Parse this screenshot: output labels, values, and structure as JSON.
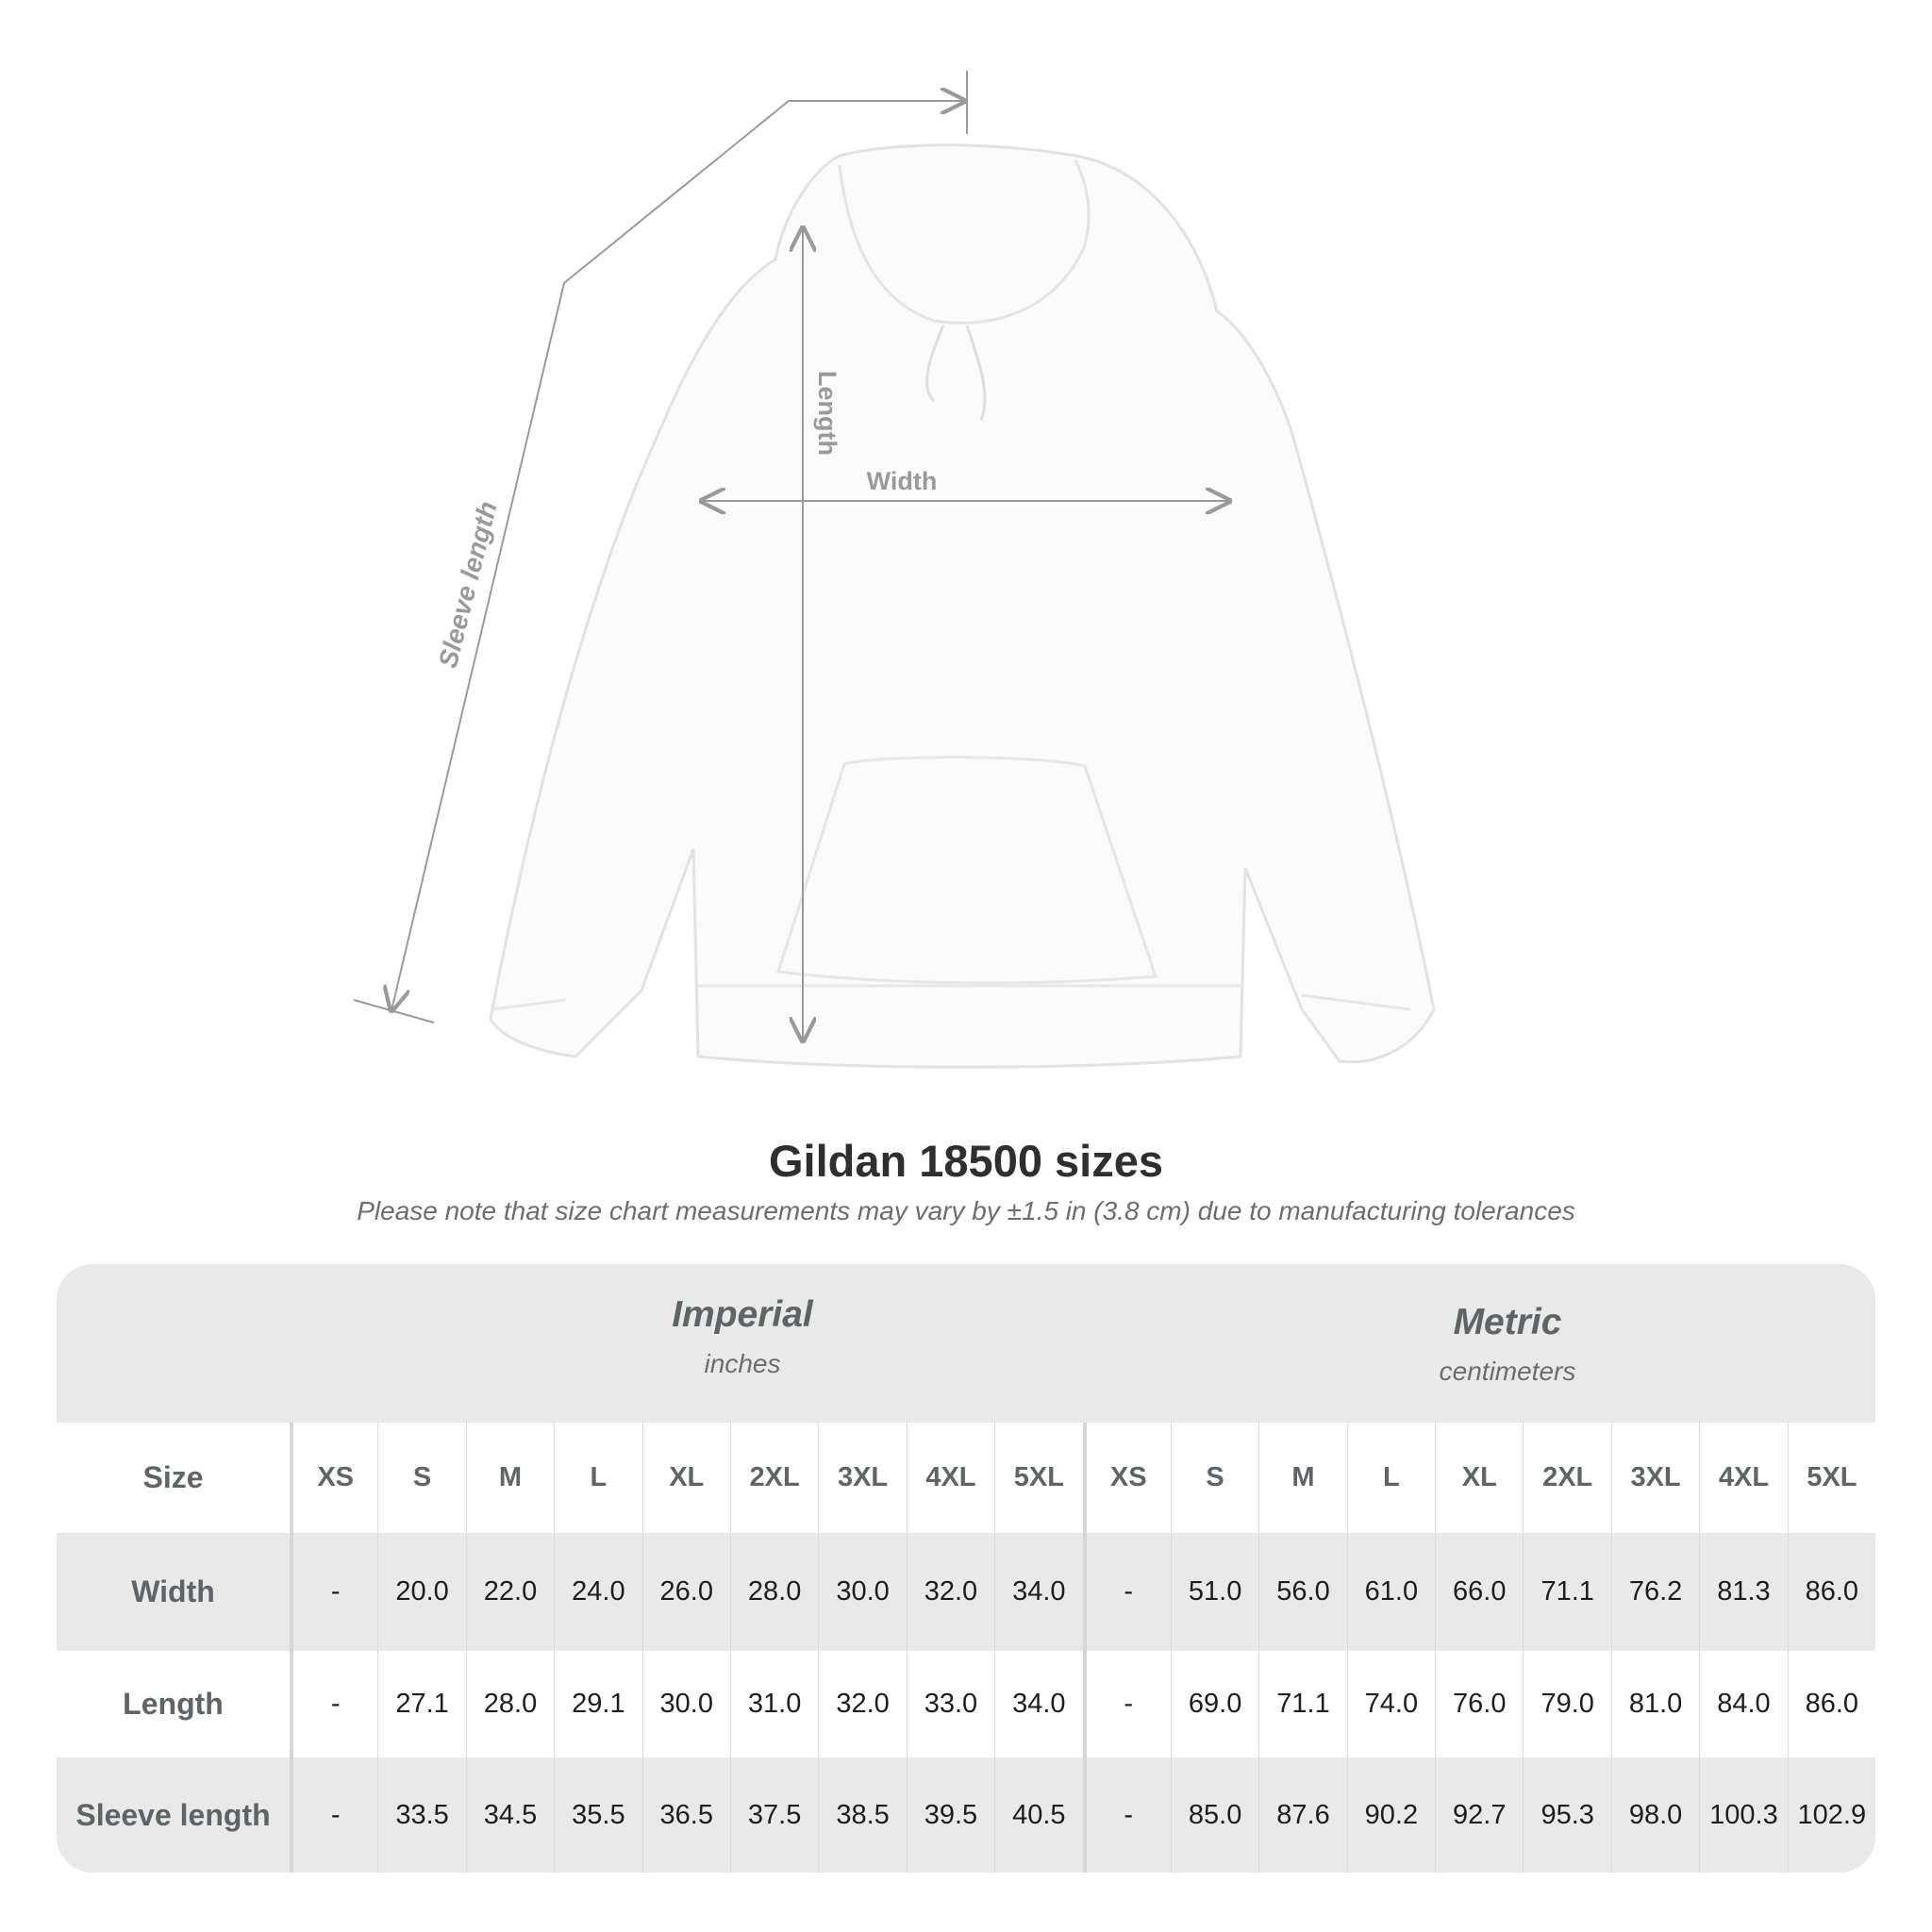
{
  "diagram": {
    "labels": {
      "sleeve": "Sleeve length",
      "length": "Length",
      "width": "Width"
    }
  },
  "title": "Gildan 18500 sizes",
  "subtitle": "Please note that size chart measurements may vary by ±1.5 in (3.8 cm) due to manufacturing tolerances",
  "table": {
    "imperial": {
      "name": "Imperial",
      "unit": "inches"
    },
    "metric": {
      "name": "Metric",
      "unit": "centimeters"
    },
    "size_label": "Size",
    "sizes": [
      "XS",
      "S",
      "M",
      "L",
      "XL",
      "2XL",
      "3XL",
      "4XL",
      "5XL"
    ],
    "rows": [
      {
        "label": "Width",
        "imperial": [
          "-",
          "20.0",
          "22.0",
          "24.0",
          "26.0",
          "28.0",
          "30.0",
          "32.0",
          "34.0"
        ],
        "metric": [
          "-",
          "51.0",
          "56.0",
          "61.0",
          "66.0",
          "71.1",
          "76.2",
          "81.3",
          "86.0"
        ]
      },
      {
        "label": "Length",
        "imperial": [
          "-",
          "27.1",
          "28.0",
          "29.1",
          "30.0",
          "31.0",
          "32.0",
          "33.0",
          "34.0"
        ],
        "metric": [
          "-",
          "69.0",
          "71.1",
          "74.0",
          "76.0",
          "79.0",
          "81.0",
          "84.0",
          "86.0"
        ]
      },
      {
        "label": "Sleeve length",
        "imperial": [
          "-",
          "33.5",
          "34.5",
          "35.5",
          "36.5",
          "37.5",
          "38.5",
          "39.5",
          "40.5"
        ],
        "metric": [
          "-",
          "85.0",
          "87.6",
          "90.2",
          "92.7",
          "95.3",
          "98.0",
          "100.3",
          "102.9"
        ]
      }
    ]
  },
  "colors": {
    "band": "#e9e9e9",
    "header_text": "#5f6466",
    "measure_line": "#9a9a9a"
  }
}
